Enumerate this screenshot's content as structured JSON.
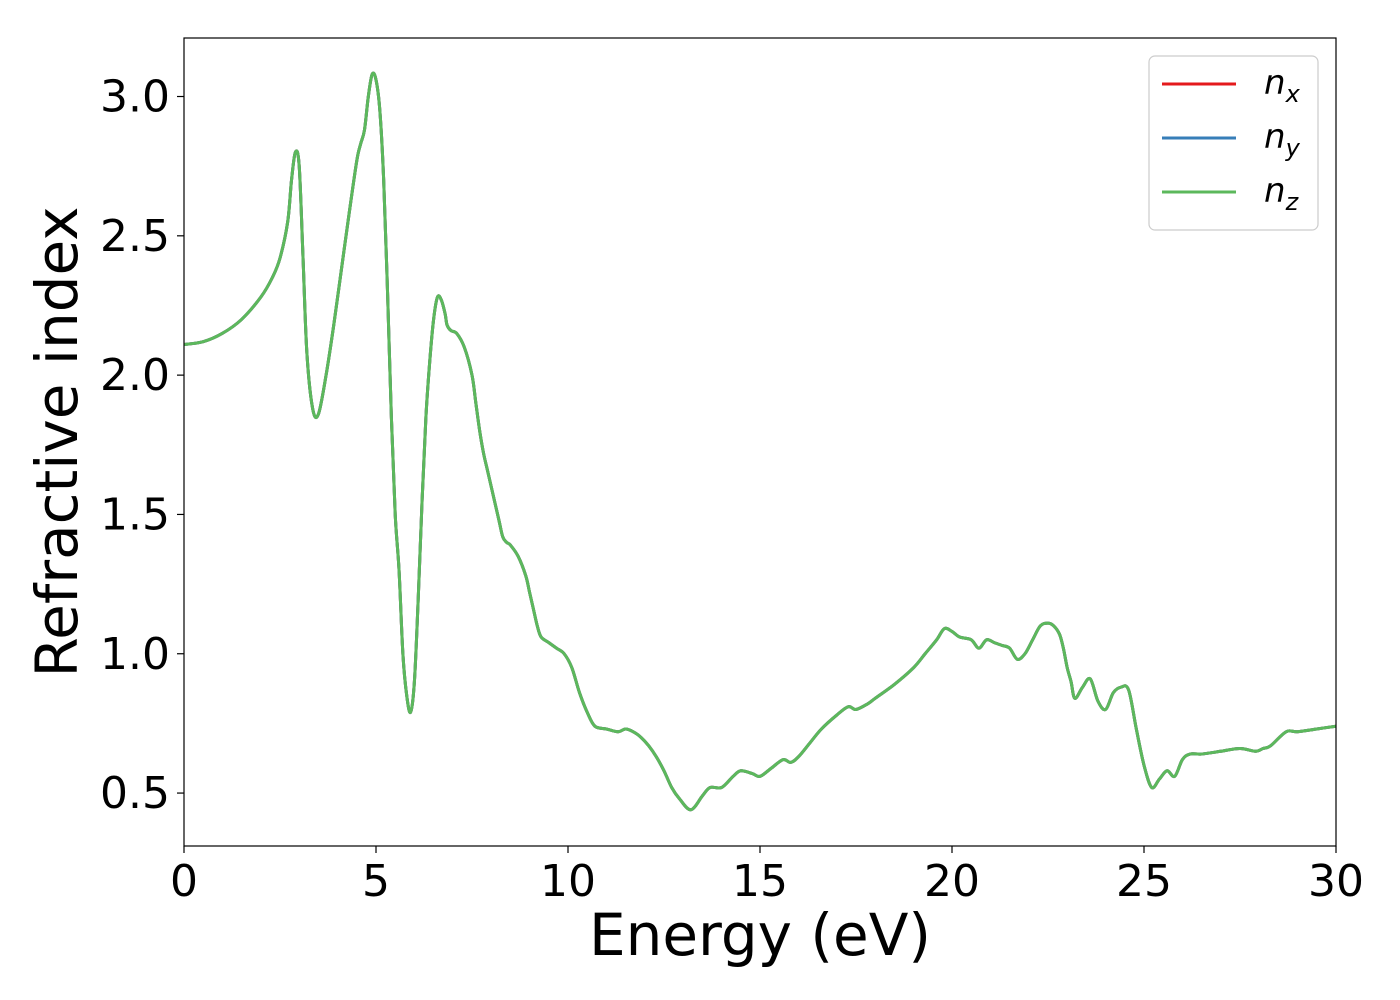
{
  "chart_data": {
    "type": "line",
    "title": "",
    "xlabel": "Energy (eV)",
    "ylabel": "Refractive index",
    "xlim": [
      0,
      30
    ],
    "ylim": [
      0.31,
      3.21
    ],
    "xticks": [
      0,
      5,
      10,
      15,
      20,
      25,
      30
    ],
    "xtick_labels": [
      "0",
      "5",
      "10",
      "15",
      "20",
      "25",
      "30"
    ],
    "yticks": [
      0.5,
      1.0,
      1.5,
      2.0,
      2.5,
      3.0
    ],
    "ytick_labels": [
      "0.5",
      "1.0",
      "1.5",
      "2.0",
      "2.5",
      "3.0"
    ],
    "grid": false,
    "legend_position": "top-right",
    "series": [
      {
        "name": "n",
        "subscript": "x",
        "color": "#e41a1c",
        "x": [
          0,
          0.5,
          1.0,
          1.5,
          2.0,
          2.3,
          2.5,
          2.7,
          2.8,
          2.9,
          3.0,
          3.1,
          3.2,
          3.35,
          3.5,
          3.7,
          3.9,
          4.1,
          4.3,
          4.5,
          4.6,
          4.7,
          4.8,
          4.9,
          5.0,
          5.1,
          5.2,
          5.3,
          5.4,
          5.5,
          5.6,
          5.7,
          5.8,
          5.9,
          6.0,
          6.1,
          6.2,
          6.3,
          6.4,
          6.5,
          6.6,
          6.7,
          6.8,
          6.85,
          6.95,
          7.1,
          7.3,
          7.5,
          7.6,
          7.7,
          7.8,
          7.9,
          8.0,
          8.2,
          8.3,
          8.4,
          8.5,
          8.7,
          8.9,
          9.0,
          9.1,
          9.2,
          9.3,
          9.5,
          9.7,
          9.9,
          10.1,
          10.3,
          10.5,
          10.7,
          11.0,
          11.3,
          11.5,
          11.7,
          11.9,
          12.1,
          12.3,
          12.5,
          12.7,
          12.9,
          13.2,
          13.5,
          13.7,
          14.0,
          14.3,
          14.5,
          14.8,
          15.0,
          15.3,
          15.6,
          15.8,
          16.0,
          16.3,
          16.6,
          17.0,
          17.3,
          17.5,
          17.8,
          18.0,
          18.5,
          19.0,
          19.3,
          19.6,
          19.8,
          20.0,
          20.2,
          20.5,
          20.7,
          20.9,
          21.1,
          21.3,
          21.5,
          21.7,
          21.9,
          22.1,
          22.3,
          22.5,
          22.65,
          22.8,
          22.9,
          23.0,
          23.1,
          23.2,
          23.4,
          23.6,
          23.8,
          24.0,
          24.2,
          24.4,
          24.6,
          24.8,
          25.0,
          25.2,
          25.4,
          25.6,
          25.8,
          26.0,
          26.2,
          26.5,
          27.0,
          27.5,
          27.9,
          28.1,
          28.3,
          28.7,
          29.0,
          29.5,
          30.0
        ],
        "y": [
          2.11,
          2.12,
          2.15,
          2.2,
          2.28,
          2.35,
          2.42,
          2.55,
          2.7,
          2.8,
          2.75,
          2.42,
          2.08,
          1.88,
          1.86,
          2.0,
          2.18,
          2.38,
          2.58,
          2.77,
          2.83,
          2.88,
          3.0,
          3.08,
          3.06,
          2.95,
          2.7,
          2.3,
          1.85,
          1.5,
          1.3,
          1.0,
          0.85,
          0.79,
          0.9,
          1.2,
          1.55,
          1.85,
          2.05,
          2.2,
          2.28,
          2.27,
          2.22,
          2.18,
          2.16,
          2.15,
          2.1,
          2.0,
          1.9,
          1.8,
          1.72,
          1.66,
          1.6,
          1.48,
          1.42,
          1.4,
          1.39,
          1.35,
          1.28,
          1.22,
          1.16,
          1.1,
          1.06,
          1.04,
          1.02,
          1.0,
          0.95,
          0.86,
          0.79,
          0.74,
          0.73,
          0.72,
          0.73,
          0.72,
          0.7,
          0.67,
          0.63,
          0.58,
          0.52,
          0.48,
          0.44,
          0.49,
          0.52,
          0.52,
          0.56,
          0.58,
          0.57,
          0.56,
          0.59,
          0.62,
          0.61,
          0.63,
          0.68,
          0.73,
          0.78,
          0.81,
          0.8,
          0.82,
          0.84,
          0.89,
          0.95,
          1.0,
          1.05,
          1.09,
          1.08,
          1.06,
          1.05,
          1.02,
          1.05,
          1.04,
          1.03,
          1.02,
          0.98,
          1.0,
          1.05,
          1.1,
          1.11,
          1.1,
          1.07,
          1.02,
          0.95,
          0.9,
          0.84,
          0.88,
          0.91,
          0.83,
          0.8,
          0.86,
          0.88,
          0.87,
          0.73,
          0.6,
          0.52,
          0.55,
          0.58,
          0.56,
          0.62,
          0.64,
          0.64,
          0.65,
          0.66,
          0.65,
          0.66,
          0.67,
          0.72,
          0.72,
          0.73,
          0.74
        ],
        "drawn": false
      },
      {
        "name": "n",
        "subscript": "y",
        "color": "#377eb8",
        "same_as": 0,
        "drawn": false
      },
      {
        "name": "n",
        "subscript": "z",
        "color": "#5cb85c",
        "same_as": 0,
        "drawn": true
      }
    ]
  }
}
